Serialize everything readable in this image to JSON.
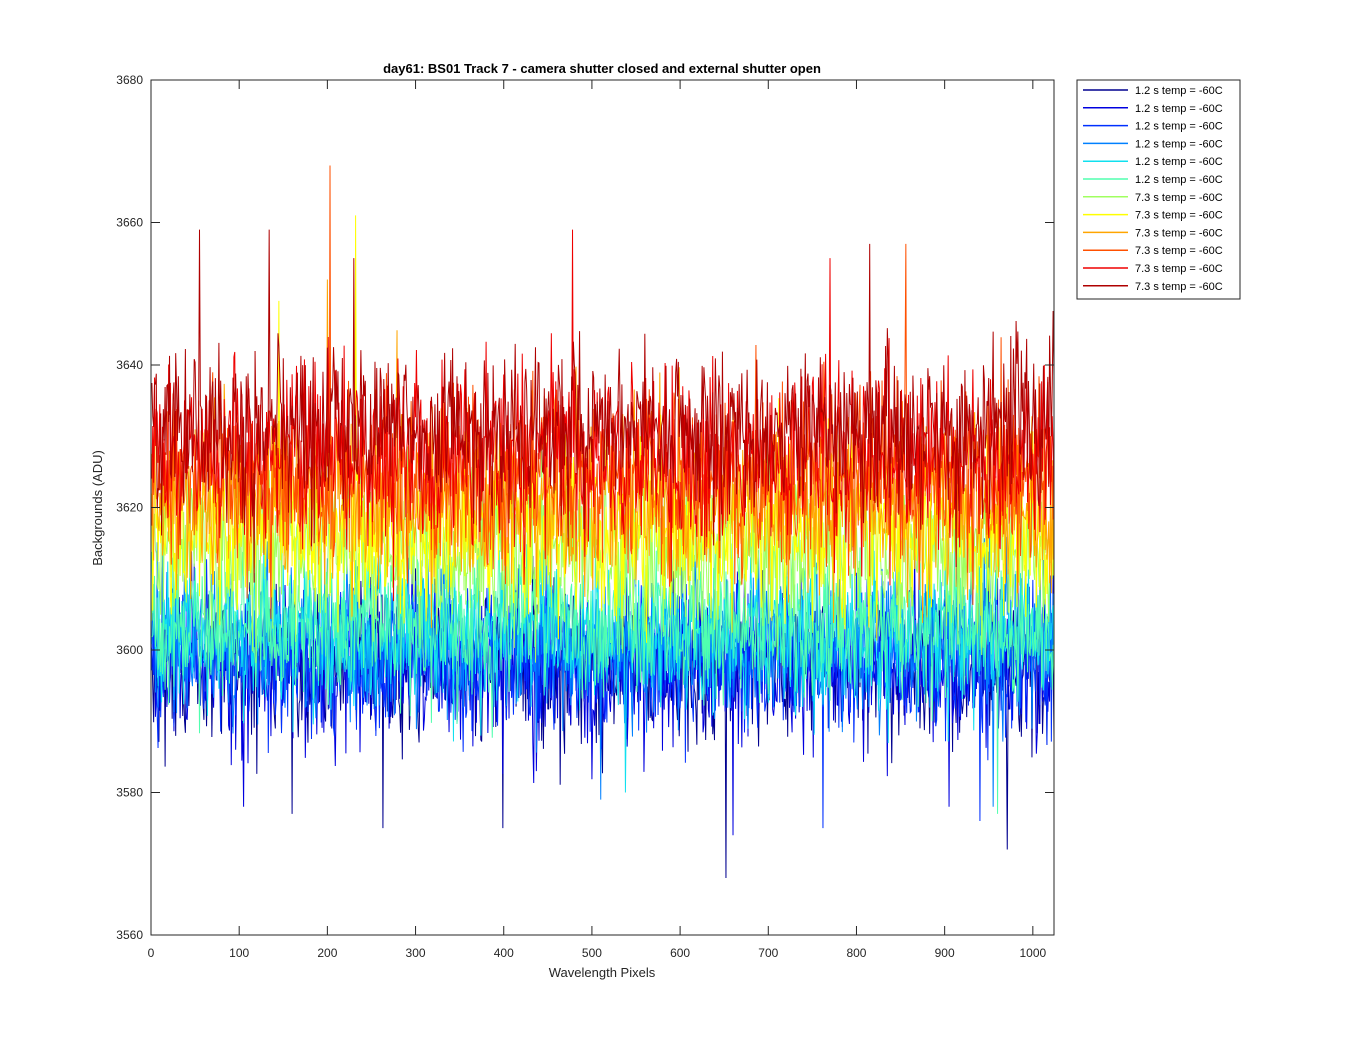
{
  "chart_data": {
    "type": "line",
    "title": "day61: BS01  Track 7 - camera shutter closed and external shutter open",
    "xlabel": "Wavelength Pixels",
    "ylabel": "Backgrounds (ADU)",
    "xlim": [
      0,
      1024
    ],
    "ylim": [
      3560,
      3680
    ],
    "xticks": [
      0,
      100,
      200,
      300,
      400,
      500,
      600,
      700,
      800,
      900,
      1000
    ],
    "yticks": [
      3560,
      3580,
      3600,
      3620,
      3640,
      3660,
      3680
    ],
    "x_range": [
      1,
      1024
    ],
    "grid": false,
    "legend_position": "outside-top-right",
    "series": [
      {
        "name": "1.2 s temp = -60C",
        "color": "#00008F",
        "mean": 3598,
        "noise": 5.5,
        "min": 3580,
        "max": 3614,
        "spikes": [
          [
            652,
            3568
          ],
          [
            971,
            3572
          ],
          [
            263,
            3575
          ],
          [
            399,
            3575
          ],
          [
            160,
            3577
          ]
        ]
      },
      {
        "name": "1.2 s temp = -60C",
        "color": "#0000DF",
        "mean": 3598,
        "noise": 5.5,
        "min": 3578,
        "max": 3614,
        "spikes": [
          [
            105,
            3578
          ],
          [
            660,
            3574
          ],
          [
            905,
            3578
          ]
        ]
      },
      {
        "name": "1.2 s temp = -60C",
        "color": "#0030FF",
        "mean": 3599,
        "noise": 5.3,
        "min": 3579,
        "max": 3615,
        "spikes": [
          [
            762,
            3575
          ],
          [
            940,
            3576
          ]
        ]
      },
      {
        "name": "1.2 s temp = -60C",
        "color": "#0080FF",
        "mean": 3601,
        "noise": 5.2,
        "min": 3580,
        "max": 3616,
        "spikes": [
          [
            510,
            3579
          ],
          [
            955,
            3578
          ]
        ]
      },
      {
        "name": "1.2 s temp = -60C",
        "color": "#10E0EF",
        "mean": 3602,
        "noise": 5.0,
        "min": 3582,
        "max": 3617,
        "spikes": [
          [
            538,
            3580
          ]
        ]
      },
      {
        "name": "1.2 s temp = -60C",
        "color": "#50FFAF",
        "mean": 3603,
        "noise": 5.0,
        "min": 3582,
        "max": 3620,
        "spikes": [
          [
            960,
            3577
          ]
        ]
      },
      {
        "name": "7.3 s temp = -60C",
        "color": "#A0FF60",
        "mean": 3614,
        "noise": 5.8,
        "min": 3598,
        "max": 3634,
        "spikes": []
      },
      {
        "name": "7.3 s temp = -60C",
        "color": "#FFFF00",
        "mean": 3617,
        "noise": 6.0,
        "min": 3600,
        "max": 3645,
        "spikes": [
          [
            232,
            3661
          ],
          [
            145,
            3649
          ]
        ]
      },
      {
        "name": "7.3 s temp = -60C",
        "color": "#FFA500",
        "mean": 3621,
        "noise": 6.0,
        "min": 3603,
        "max": 3648,
        "spikes": [
          [
            200,
            3652
          ]
        ]
      },
      {
        "name": "7.3 s temp = -60C",
        "color": "#FF5000",
        "mean": 3624,
        "noise": 6.0,
        "min": 3604,
        "max": 3650,
        "spikes": [
          [
            203,
            3668
          ],
          [
            856,
            3657
          ]
        ]
      },
      {
        "name": "7.3 s temp = -60C",
        "color": "#EF0000",
        "mean": 3627,
        "noise": 6.0,
        "min": 3605,
        "max": 3652,
        "spikes": [
          [
            478,
            3659
          ],
          [
            770,
            3655
          ]
        ]
      },
      {
        "name": "7.3 s temp = -60C",
        "color": "#AF0000",
        "mean": 3631,
        "noise": 6.0,
        "min": 3608,
        "max": 3655,
        "spikes": [
          [
            55,
            3659
          ],
          [
            134,
            3659
          ],
          [
            815,
            3657
          ],
          [
            230,
            3655
          ]
        ]
      }
    ]
  }
}
